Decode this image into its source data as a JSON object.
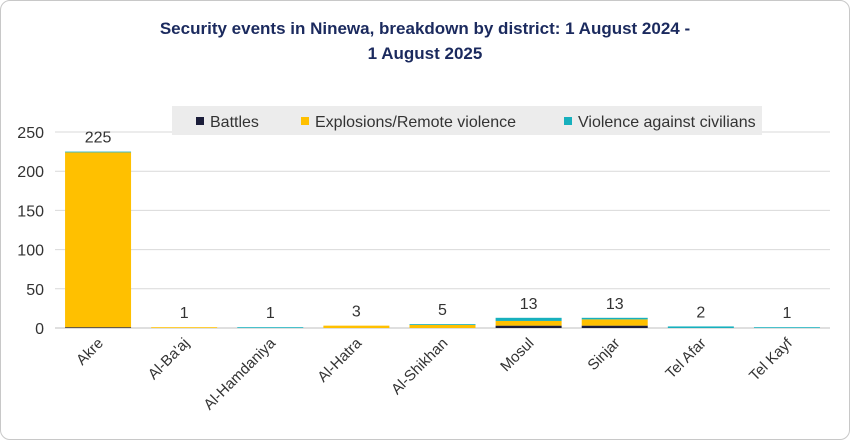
{
  "title_line1": "Security events in Ninewa, breakdown by district: 1 August 2024 -",
  "title_line2": "1 August 2025",
  "chart_data": {
    "type": "bar",
    "stacked": true,
    "title": "Security events in Ninewa, breakdown by district: 1 August 2024 - 1 August 2025",
    "xlabel": "",
    "ylabel": "",
    "ylim": [
      0,
      250
    ],
    "yticks": [
      0,
      50,
      100,
      150,
      200,
      250
    ],
    "grid": true,
    "legend_position": "top",
    "categories": [
      "Akre",
      "Al-Ba'aj",
      "Al-Hamdaniya",
      "Al-Hatra",
      "Al-Shikhan",
      "Mosul",
      "Sinjar",
      "Tel Afar",
      "Tel Kayf"
    ],
    "series": [
      {
        "name": "Battles",
        "color": "#1b1d3a",
        "values": [
          1,
          0,
          0,
          0,
          0,
          3,
          3,
          0,
          0
        ]
      },
      {
        "name": "Explosions/Remote violence",
        "color": "#ffc000",
        "values": [
          223,
          1,
          0,
          3,
          4,
          6,
          8,
          0,
          0
        ]
      },
      {
        "name": "Violence against civilians",
        "color": "#17b0bd",
        "values": [
          1,
          0,
          1,
          0,
          1,
          4,
          2,
          2,
          1
        ]
      }
    ],
    "totals": [
      225,
      1,
      1,
      3,
      5,
      13,
      13,
      2,
      1
    ]
  }
}
